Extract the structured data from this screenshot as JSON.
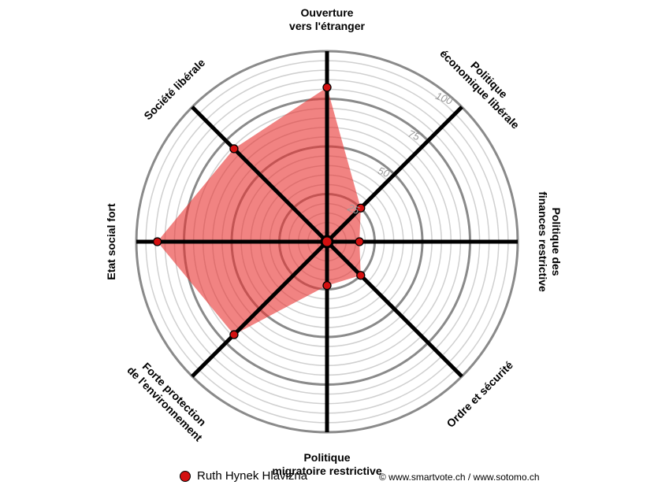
{
  "chart_data": {
    "type": "radar",
    "axes": [
      "Ouverture\nvers l'étranger",
      "Politique\néconomique libérale",
      "Politique des\nfinances restrictive",
      "Ordre et sécurité",
      "Politique\nmigratoire restrictive",
      "Forte protection\nde l'environnement",
      "Etat social fort",
      "Société libérale"
    ],
    "rlim": [
      0,
      100
    ],
    "ticks": [
      25,
      50,
      75,
      100
    ],
    "grid": true,
    "series": [
      {
        "name": "Ruth Hynek Hlavizna",
        "values": [
          81,
          25,
          17,
          25,
          23,
          69,
          89,
          69
        ]
      }
    ]
  },
  "legend": {
    "label": "Ruth Hynek Hlavizna"
  },
  "footer": {
    "copyright": "© www.smartvote.ch / www.sotomo.ch"
  },
  "colors": {
    "fill": "#e8302e",
    "marker": "#d41010",
    "axis": "#000000",
    "grid": "#8a8a8a",
    "minor_grid": "#d0d0d0"
  }
}
